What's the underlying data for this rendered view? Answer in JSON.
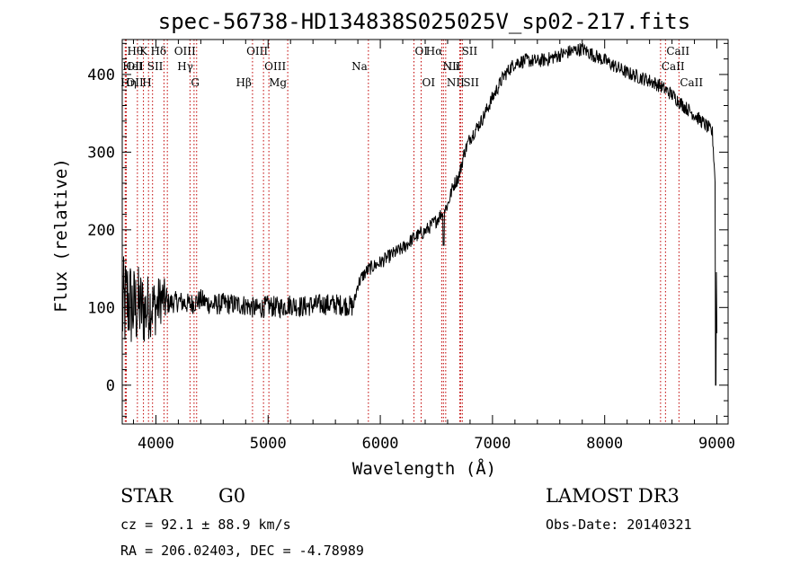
{
  "chart_data": {
    "type": "line",
    "title": "spec-56738-HD134838S025025V_sp02-217.fits",
    "xlabel": "Wavelength (Å)",
    "ylabel": "Flux (relative)",
    "xlim": [
      3700,
      9100
    ],
    "ylim": [
      -50,
      445
    ],
    "xticks": [
      4000,
      5000,
      6000,
      7000,
      8000,
      9000
    ],
    "yticks": [
      0,
      100,
      200,
      300,
      400
    ],
    "xminor_step": 200,
    "yminor_step": 20,
    "grid": false,
    "series": [
      {
        "name": "flux",
        "knots": [
          [
            3700,
            95
          ],
          [
            3750,
            110
          ],
          [
            3800,
            98
          ],
          [
            3850,
            102
          ],
          [
            3900,
            95
          ],
          [
            3950,
            104
          ],
          [
            4000,
            100
          ],
          [
            4050,
            112
          ],
          [
            4100,
            105
          ],
          [
            4200,
            108
          ],
          [
            4300,
            104
          ],
          [
            4400,
            110
          ],
          [
            4500,
            103
          ],
          [
            4600,
            105
          ],
          [
            4700,
            104
          ],
          [
            4800,
            103
          ],
          [
            4900,
            98
          ],
          [
            5000,
            102
          ],
          [
            5100,
            100
          ],
          [
            5200,
            104
          ],
          [
            5300,
            101
          ],
          [
            5400,
            103
          ],
          [
            5500,
            104
          ],
          [
            5600,
            104
          ],
          [
            5700,
            103
          ],
          [
            5760,
            101
          ],
          [
            5800,
            130
          ],
          [
            5850,
            142
          ],
          [
            5900,
            150
          ],
          [
            6000,
            158
          ],
          [
            6100,
            168
          ],
          [
            6200,
            176
          ],
          [
            6300,
            190
          ],
          [
            6400,
            198
          ],
          [
            6500,
            212
          ],
          [
            6600,
            232
          ],
          [
            6650,
            257
          ],
          [
            6700,
            268
          ],
          [
            6750,
            300
          ],
          [
            6800,
            318
          ],
          [
            6900,
            340
          ],
          [
            7000,
            370
          ],
          [
            7100,
            398
          ],
          [
            7200,
            415
          ],
          [
            7300,
            418
          ],
          [
            7400,
            417
          ],
          [
            7500,
            420
          ],
          [
            7600,
            425
          ],
          [
            7700,
            430
          ],
          [
            7800,
            433
          ],
          [
            7900,
            425
          ],
          [
            8000,
            418
          ],
          [
            8100,
            410
          ],
          [
            8200,
            402
          ],
          [
            8300,
            397
          ],
          [
            8400,
            392
          ],
          [
            8500,
            385
          ],
          [
            8600,
            374
          ],
          [
            8700,
            360
          ],
          [
            8800,
            348
          ],
          [
            8900,
            335
          ],
          [
            8960,
            325
          ],
          [
            8990,
            250
          ],
          [
            9000,
            70
          ]
        ],
        "dips": [
          {
            "x": 6563,
            "y": 180,
            "label": "Halpha absorption"
          },
          {
            "x": 8990,
            "y": 0,
            "label": "edge drop"
          }
        ]
      }
    ],
    "lines": [
      {
        "x": 3736,
        "label": "Hθ",
        "row": 0,
        "side": "right"
      },
      {
        "x": 3727,
        "label": "OII",
        "row": 1,
        "side": "right"
      },
      {
        "x": 3727,
        "label": "OII",
        "row": 2,
        "side": "right"
      },
      {
        "x": 3835,
        "label": "Hη",
        "row": 2,
        "side": "left"
      },
      {
        "x": 3889,
        "label": "HeI",
        "row": 1,
        "side": "left"
      },
      {
        "x": 3934,
        "label": "K",
        "row": 0,
        "side": "left"
      },
      {
        "x": 3970,
        "label": "H",
        "row": 2,
        "side": "left"
      },
      {
        "x": 4072,
        "label": "SII",
        "row": 1,
        "side": "left"
      },
      {
        "x": 4102,
        "label": "Hδ",
        "row": 0,
        "side": "left"
      },
      {
        "x": 4304,
        "label": "G",
        "row": 2,
        "side": "right"
      },
      {
        "x": 4340,
        "label": "Hγ",
        "row": 1,
        "side": "left"
      },
      {
        "x": 4363,
        "label": "OIII",
        "row": 0,
        "side": "left"
      },
      {
        "x": 4861,
        "label": "Hβ",
        "row": 2,
        "side": "left"
      },
      {
        "x": 4959,
        "label": "OIII",
        "row": 1,
        "side": "right"
      },
      {
        "x": 5007,
        "label": "OIII",
        "row": 0,
        "side": "left"
      },
      {
        "x": 5175,
        "label": "Mg",
        "row": 2,
        "side": "left"
      },
      {
        "x": 5894,
        "label": "Na",
        "row": 1,
        "side": "left"
      },
      {
        "x": 6300,
        "label": "OI",
        "row": 0,
        "side": "right"
      },
      {
        "x": 6364,
        "label": "OI",
        "row": 2,
        "side": "right"
      },
      {
        "x": 6548,
        "label": "NII",
        "row": 1,
        "side": "right"
      },
      {
        "x": 6563,
        "label": "Hα",
        "row": 0,
        "side": "left"
      },
      {
        "x": 6583,
        "label": "NII",
        "row": 2,
        "side": "right"
      },
      {
        "x": 6708,
        "label": "Li",
        "row": 1,
        "side": "left"
      },
      {
        "x": 6717,
        "label": "SII",
        "row": 0,
        "side": "right"
      },
      {
        "x": 6731,
        "label": "SII",
        "row": 2,
        "side": "right"
      },
      {
        "x": 8498,
        "label": "CaII",
        "row": 1,
        "side": "right"
      },
      {
        "x": 8542,
        "label": "CaII",
        "row": 0,
        "side": "right"
      },
      {
        "x": 8662,
        "label": "CaII",
        "row": 2,
        "side": "right"
      }
    ]
  },
  "info": {
    "object_class": "STAR",
    "subclass": "G0",
    "survey": "LAMOST DR3",
    "cz": "cz = 92.1 ± 88.9 km/s",
    "obs_date": "Obs-Date: 20140321",
    "coords": "RA = 206.02403, DEC =  -4.78989"
  }
}
